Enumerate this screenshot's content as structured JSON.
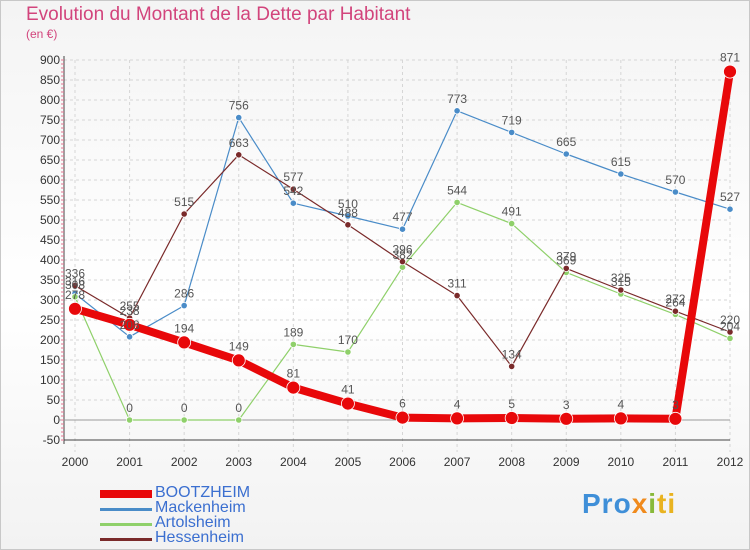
{
  "title": "Evolution du Montant de la Dette par Habitant",
  "subtitle": "(en €)",
  "logo": {
    "parts": [
      "Pro",
      "x",
      "i",
      "ti"
    ]
  },
  "chart_data": {
    "type": "line",
    "categories": [
      "2000",
      "2001",
      "2002",
      "2003",
      "2004",
      "2005",
      "2006",
      "2007",
      "2008",
      "2009",
      "2010",
      "2011",
      "2012"
    ],
    "ylim": [
      -50,
      900
    ],
    "yticks": [
      "-50",
      "0",
      "50",
      "100",
      "150",
      "200",
      "250",
      "300",
      "350",
      "400",
      "450",
      "500",
      "550",
      "600",
      "650",
      "700",
      "750",
      "800",
      "850",
      "900"
    ],
    "grid": true,
    "legend_position": "bottom-left",
    "series": [
      {
        "name": "Mackenheim",
        "color": "#4a8cc8",
        "width": 1.2,
        "values": [
          316,
          208,
          286,
          756,
          542,
          510,
          477,
          773,
          719,
          665,
          615,
          570,
          527
        ],
        "labels": [
          "316",
          "208",
          "286",
          "756",
          "542",
          "510",
          "477",
          "773",
          "719",
          "665",
          "615",
          "570",
          "527"
        ]
      },
      {
        "name": "Artolsheim",
        "color": "#8fd06a",
        "width": 1.2,
        "values": [
          308,
          0,
          0,
          0,
          189,
          170,
          382,
          544,
          491,
          369,
          315,
          264,
          204
        ],
        "labels": [
          "308",
          "0",
          "0",
          "0",
          "189",
          "170",
          "382",
          "544",
          "491",
          "369",
          "315",
          "264",
          "204"
        ]
      },
      {
        "name": "Hessenheim",
        "color": "#7a2a2a",
        "width": 1.2,
        "values": [
          336,
          255,
          515,
          663,
          577,
          488,
          396,
          311,
          134,
          379,
          325,
          272,
          220
        ],
        "labels": [
          "336",
          "255",
          "515",
          "663",
          "577",
          "488",
          "396",
          "311",
          "134",
          "379",
          "325",
          "272",
          "220"
        ]
      },
      {
        "name": "BOOTZHEIM",
        "color": "#e8080a",
        "width": 8,
        "values": [
          278,
          238,
          194,
          149,
          81,
          41,
          6,
          4,
          5,
          3,
          4,
          3,
          871
        ],
        "labels": [
          "278",
          "238",
          "194",
          "149",
          "81",
          "41",
          "6",
          "4",
          "5",
          "3",
          "4",
          "3",
          "871"
        ]
      }
    ]
  }
}
